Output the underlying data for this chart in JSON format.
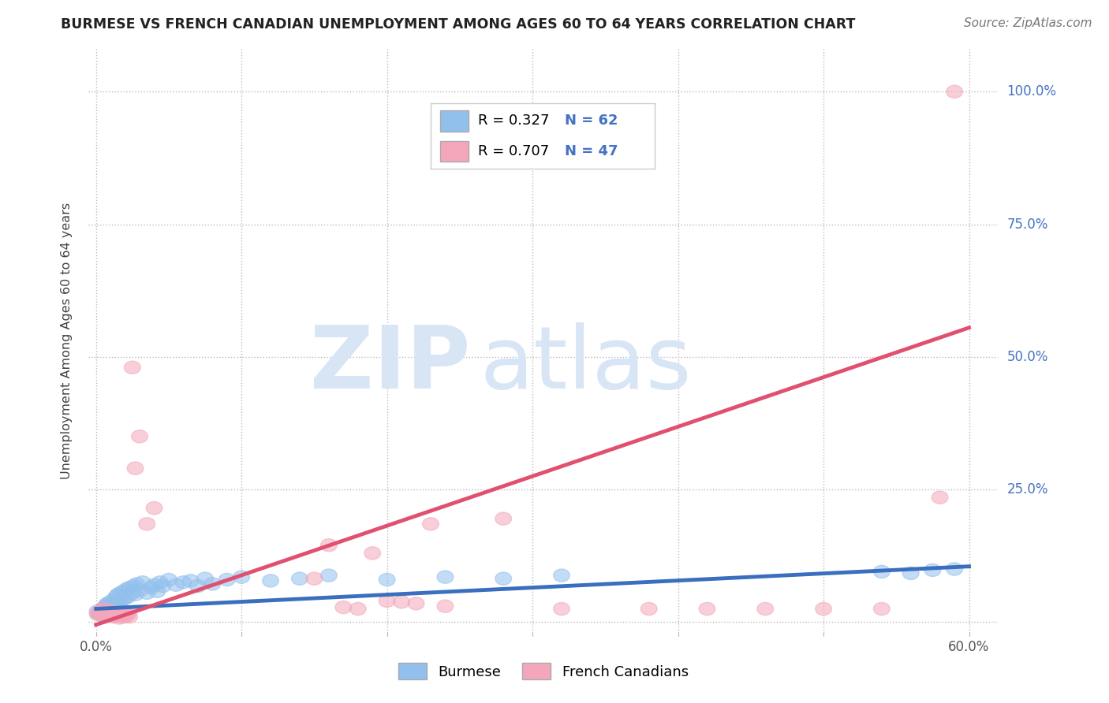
{
  "title": "BURMESE VS FRENCH CANADIAN UNEMPLOYMENT AMONG AGES 60 TO 64 YEARS CORRELATION CHART",
  "source": "Source: ZipAtlas.com",
  "ylabel": "Unemployment Among Ages 60 to 64 years",
  "xlim": [
    -0.005,
    0.62
  ],
  "ylim": [
    -0.02,
    1.08
  ],
  "xticks": [
    0.0,
    0.1,
    0.2,
    0.3,
    0.4,
    0.5,
    0.6
  ],
  "yticks": [
    0.0,
    0.25,
    0.5,
    0.75,
    1.0
  ],
  "ytick_labels": [
    "",
    "25.0%",
    "50.0%",
    "75.0%",
    "100.0%"
  ],
  "burmese_color": "#92C0ED",
  "french_color": "#F4A7BB",
  "burmese_line_color": "#3A6EBF",
  "french_line_color": "#E05070",
  "legend_R_burmese": "0.327",
  "legend_N_burmese": "62",
  "legend_R_french": "0.707",
  "legend_N_french": "47",
  "watermark_zip": "ZIP",
  "watermark_atlas": "atlas",
  "watermark_color": "#D8E5F5",
  "background_color": "#FFFFFF",
  "grid_color": "#BBBBBB",
  "burmese_x": [
    0.001,
    0.002,
    0.003,
    0.004,
    0.005,
    0.005,
    0.006,
    0.006,
    0.007,
    0.007,
    0.008,
    0.008,
    0.009,
    0.009,
    0.01,
    0.01,
    0.011,
    0.012,
    0.013,
    0.014,
    0.015,
    0.015,
    0.016,
    0.017,
    0.018,
    0.019,
    0.02,
    0.021,
    0.022,
    0.023,
    0.025,
    0.026,
    0.027,
    0.028,
    0.03,
    0.032,
    0.035,
    0.038,
    0.04,
    0.042,
    0.044,
    0.046,
    0.05,
    0.055,
    0.06,
    0.065,
    0.07,
    0.075,
    0.08,
    0.09,
    0.1,
    0.12,
    0.14,
    0.16,
    0.2,
    0.24,
    0.28,
    0.32,
    0.54,
    0.56,
    0.575,
    0.59
  ],
  "burmese_y": [
    0.02,
    0.015,
    0.018,
    0.022,
    0.012,
    0.025,
    0.01,
    0.028,
    0.015,
    0.032,
    0.018,
    0.035,
    0.012,
    0.03,
    0.015,
    0.038,
    0.025,
    0.042,
    0.035,
    0.048,
    0.028,
    0.052,
    0.038,
    0.055,
    0.042,
    0.058,
    0.045,
    0.062,
    0.048,
    0.065,
    0.055,
    0.068,
    0.052,
    0.072,
    0.06,
    0.075,
    0.055,
    0.065,
    0.07,
    0.058,
    0.075,
    0.068,
    0.08,
    0.07,
    0.075,
    0.078,
    0.068,
    0.082,
    0.072,
    0.08,
    0.085,
    0.078,
    0.082,
    0.088,
    0.08,
    0.085,
    0.082,
    0.088,
    0.095,
    0.092,
    0.098,
    0.1
  ],
  "french_x": [
    0.001,
    0.002,
    0.003,
    0.004,
    0.005,
    0.006,
    0.007,
    0.008,
    0.009,
    0.01,
    0.011,
    0.012,
    0.013,
    0.014,
    0.015,
    0.016,
    0.017,
    0.018,
    0.019,
    0.02,
    0.021,
    0.022,
    0.023,
    0.025,
    0.027,
    0.03,
    0.035,
    0.04,
    0.15,
    0.16,
    0.17,
    0.18,
    0.19,
    0.2,
    0.21,
    0.22,
    0.23,
    0.24,
    0.28,
    0.32,
    0.38,
    0.42,
    0.46,
    0.5,
    0.54,
    0.58,
    0.59
  ],
  "french_y": [
    0.015,
    0.018,
    0.022,
    0.015,
    0.025,
    0.012,
    0.018,
    0.02,
    0.015,
    0.022,
    0.018,
    0.01,
    0.015,
    0.012,
    0.018,
    0.008,
    0.012,
    0.015,
    0.01,
    0.018,
    0.012,
    0.015,
    0.01,
    0.48,
    0.29,
    0.35,
    0.185,
    0.215,
    0.082,
    0.145,
    0.028,
    0.025,
    0.13,
    0.04,
    0.038,
    0.035,
    0.185,
    0.03,
    0.195,
    0.025,
    0.025,
    0.025,
    0.025,
    0.025,
    0.025,
    0.235,
    1.0
  ],
  "burmese_line_x0": 0.0,
  "burmese_line_y0": 0.025,
  "burmese_line_x1": 0.6,
  "burmese_line_y1": 0.105,
  "french_line_x0": 0.0,
  "french_line_y0": -0.005,
  "french_line_x1": 0.6,
  "french_line_y1": 0.555
}
